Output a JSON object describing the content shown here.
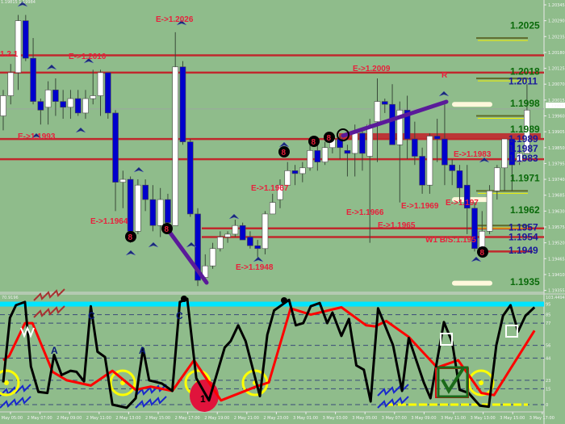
{
  "chart_data": [
    {
      "type": "candlestick",
      "price_axis": {
        "ticks": [
          "1.20345",
          "1.20290",
          "1.20235",
          "1.20180",
          "1.20125",
          "1.20070",
          "1.20015",
          "1.19960",
          "1.19905",
          "1.19850",
          "1.19795",
          "1.19740",
          "1.19685",
          "1.19630",
          "1.19575",
          "1.19520",
          "1.19465",
          "1.19410",
          "1.19355"
        ],
        "range": [
          1.1933,
          1.2036
        ],
        "current_price": "1.19984"
      },
      "header_text": "1.19815 1.19984",
      "candles_ohlc": [
        [
          1.1996,
          1.2005,
          1.1991,
          1.2003
        ],
        [
          1.2003,
          1.2014,
          1.2,
          1.2011
        ],
        [
          1.2011,
          1.2031,
          1.2005,
          1.2029
        ],
        [
          1.2029,
          1.2031,
          1.2015,
          1.2016
        ],
        [
          1.2016,
          1.2023,
          1.2,
          1.2001
        ],
        [
          1.2001,
          1.2002,
          1.1993,
          1.1998
        ],
        [
          1.1999,
          1.2008,
          1.1993,
          1.2005
        ],
        [
          1.2005,
          1.2009,
          1.1996,
          1.2001
        ],
        [
          1.2001,
          1.2005,
          1.1995,
          1.1999
        ],
        [
          1.1999,
          1.2005,
          1.1995,
          1.2002
        ],
        [
          1.2002,
          1.2005,
          1.1996,
          1.1997
        ],
        [
          1.1997,
          1.2005,
          1.1995,
          1.2002
        ],
        [
          1.2002,
          1.2012,
          1.2,
          1.2003
        ],
        [
          1.2003,
          1.2012,
          1.1996,
          1.2011
        ],
        [
          1.2011,
          1.2011,
          1.1995,
          1.1997
        ],
        [
          1.1997,
          1.1998,
          1.1963,
          1.1973
        ],
        [
          1.1973,
          1.1977,
          1.1964,
          1.1974
        ],
        [
          1.1974,
          1.1975,
          1.1952,
          1.1956
        ],
        [
          1.1956,
          1.1974,
          1.1955,
          1.1972
        ],
        [
          1.1972,
          1.1974,
          1.1963,
          1.1967
        ],
        [
          1.1967,
          1.1972,
          1.1956,
          1.1958
        ],
        [
          1.1958,
          1.1971,
          1.1954,
          1.1967
        ],
        [
          1.1967,
          1.1969,
          1.1958,
          1.1959
        ],
        [
          1.1958,
          1.2025,
          1.1958,
          1.2013
        ],
        [
          1.2013,
          1.2015,
          1.1986,
          1.1987
        ],
        [
          1.1987,
          1.1988,
          1.1961,
          1.1962
        ],
        [
          1.1962,
          1.1964,
          1.1937,
          1.1939
        ],
        [
          1.194,
          1.1948,
          1.1938,
          1.1944
        ],
        [
          1.1944,
          1.1952,
          1.1943,
          1.195
        ],
        [
          1.195,
          1.1956,
          1.1949,
          1.1954
        ],
        [
          1.1954,
          1.1956,
          1.1952,
          1.1955
        ],
        [
          1.1955,
          1.196,
          1.1954,
          1.1958
        ],
        [
          1.1958,
          1.1959,
          1.1953,
          1.1953
        ],
        [
          1.1954,
          1.1956,
          1.195,
          1.1951
        ],
        [
          1.1951,
          1.1953,
          1.1947,
          1.195
        ],
        [
          1.195,
          1.1963,
          1.1948,
          1.1962
        ],
        [
          1.1962,
          1.1969,
          1.1962,
          1.1966
        ],
        [
          1.1967,
          1.1974,
          1.1964,
          1.1972
        ],
        [
          1.1972,
          1.198,
          1.1972,
          1.1977
        ],
        [
          1.1977,
          1.1979,
          1.1972,
          1.1976
        ],
        [
          1.1976,
          1.198,
          1.1973,
          1.1978
        ],
        [
          1.1978,
          1.1986,
          1.1977,
          1.1984
        ],
        [
          1.1984,
          1.1986,
          1.1977,
          1.198
        ],
        [
          1.198,
          1.1987,
          1.1979,
          1.1985
        ],
        [
          1.1985,
          1.1989,
          1.1983,
          1.1988
        ],
        [
          1.1988,
          1.1989,
          1.1981,
          1.1985
        ],
        [
          1.1984,
          1.1986,
          1.1975,
          1.1983
        ],
        [
          1.1983,
          1.1993,
          1.1975,
          1.199
        ],
        [
          1.199,
          1.1991,
          1.1977,
          1.1983
        ],
        [
          1.1982,
          1.1995,
          1.1952,
          1.1993
        ],
        [
          1.1994,
          1.2009,
          1.198,
          1.2001
        ],
        [
          1.2001,
          1.2002,
          1.1997,
          1.2
        ],
        [
          1.2,
          1.2007,
          1.1986,
          1.1986
        ],
        [
          1.1986,
          1.2001,
          1.1966,
          1.1998
        ],
        [
          1.1998,
          1.2003,
          1.1981,
          1.1988
        ],
        [
          1.1988,
          1.1994,
          1.1979,
          1.1982
        ],
        [
          1.1982,
          1.1985,
          1.1969,
          1.1972
        ],
        [
          1.1972,
          1.199,
          1.1969,
          1.1989
        ],
        [
          1.1989,
          1.1995,
          1.198,
          1.1988
        ],
        [
          1.1988,
          1.2,
          1.1972,
          1.1979
        ],
        [
          1.1979,
          1.1981,
          1.1972,
          1.1977
        ],
        [
          1.1977,
          1.1979,
          1.1966,
          1.1971
        ],
        [
          1.1972,
          1.1979,
          1.1955,
          1.1964
        ],
        [
          1.1964,
          1.1966,
          1.1949,
          1.195
        ],
        [
          1.195,
          1.1963,
          1.1949,
          1.1956
        ],
        [
          1.1956,
          1.1972,
          1.1955,
          1.197
        ],
        [
          1.197,
          1.1979,
          1.1967,
          1.1978
        ],
        [
          1.1978,
          1.1988,
          1.197,
          1.1988
        ],
        [
          1.1988,
          1.1988,
          1.197,
          1.1979
        ],
        [
          1.198,
          1.1986,
          1.1979,
          1.1983
        ],
        [
          1.1983,
          1.2007,
          1.1983,
          1.1998
        ]
      ],
      "colors": {
        "bull": "#ffffff",
        "bear": "#0000cc",
        "level_line": "#c0282d",
        "trend_line": "#5a1a9a"
      },
      "red_levels": [
        1.2017,
        1.2011,
        1.1988,
        1.1981,
        1.1957,
        1.1954
      ],
      "right_labels": [
        {
          "text": "1.2025",
          "price": 1.2026,
          "color": "#0a6a0a"
        },
        {
          "text": "1.2018",
          "price": 1.201,
          "color": "#0a6a0a"
        },
        {
          "text": "1.2011",
          "price": 1.201,
          "color": "#1a1a9a"
        },
        {
          "text": "1.1998",
          "price": 1.1999,
          "color": "#0a6a0a"
        },
        {
          "text": "1.1989",
          "price": 1.199,
          "color": "#0a6a0a"
        },
        {
          "text": "1.1989",
          "price": 1.1987,
          "color": "#1a1a9a"
        },
        {
          "text": "1.1987",
          "price": 1.1984,
          "color": "#1a1a9a"
        },
        {
          "text": "1.1983",
          "price": 1.198,
          "color": "#1a1a9a"
        },
        {
          "text": "1.1971",
          "price": 1.1973,
          "color": "#0a6a0a"
        },
        {
          "text": "1.1962",
          "price": 1.1962,
          "color": "#0a6a0a"
        },
        {
          "text": "1.1957",
          "price": 1.1956,
          "color": "#1a1a9a"
        },
        {
          "text": "1.1954",
          "price": 1.1953,
          "color": "#1a1a9a"
        },
        {
          "text": "1.1949",
          "price": 1.1948,
          "color": "#1a1a9a"
        },
        {
          "text": "1.1935",
          "price": 1.1937,
          "color": "#0a6a0a"
        }
      ],
      "annotations": [
        "E->1.2026",
        "E->1.2010",
        "E->1.1993",
        "1.2  1",
        "E->1.1964",
        "E->1.1948",
        "E->1.1967",
        "E->1.2009",
        "E->1.1966",
        "E->1.1965",
        "E->1.1969",
        "E->1.197",
        "E->1.1983",
        "W1 B/S:1.195",
        "R",
        "C"
      ],
      "markers": [
        "8",
        "8",
        "8",
        "8",
        "8",
        "8"
      ]
    },
    {
      "type": "line",
      "oscillator_header": "70.9196",
      "y_top_label": "103.4494",
      "levels": [
        "95",
        "85",
        "77",
        "56",
        "44",
        "23",
        "15",
        "0"
      ],
      "ylim": [
        0,
        103.4494
      ],
      "x_tick_labels": [
        "2 May 05:00",
        "2 May 07:00",
        "2 May 09:00",
        "2 May 11:00",
        "2 May 13:00",
        "2 May 15:00",
        "2 May 17:00",
        "2 May 19:00",
        "2 May 21:00",
        "2 May 23:00",
        "3 May 01:00",
        "3 May 03:00",
        "3 May 05:00",
        "3 May 07:00",
        "3 May 09:00",
        "3 May 11:00",
        "3 May 13:00",
        "3 May 15:00",
        "3 May 17:00"
      ],
      "series": [
        {
          "color": "#000000",
          "points_bar_value": [
            [
              0,
              21
            ],
            [
              0.9,
              82
            ],
            [
              1.7,
              94
            ],
            [
              2.9,
              97
            ],
            [
              3.7,
              36
            ],
            [
              4.7,
              12
            ],
            [
              5.9,
              11
            ],
            [
              6.8,
              47
            ],
            [
              7.8,
              28
            ],
            [
              9.0,
              32
            ],
            [
              9.8,
              31
            ],
            [
              10.8,
              22
            ],
            [
              11.7,
              93
            ],
            [
              12.6,
              50
            ],
            [
              13.6,
              45
            ],
            [
              14.6,
              0
            ],
            [
              16.5,
              -3
            ],
            [
              17.7,
              6
            ],
            [
              18.7,
              53
            ],
            [
              19.5,
              23
            ],
            [
              21.2,
              20
            ],
            [
              22.6,
              13
            ],
            [
              23.6,
              97
            ],
            [
              24.6,
              100
            ],
            [
              25.8,
              25
            ],
            [
              27.5,
              4
            ],
            [
              29.6,
              54
            ],
            [
              30.4,
              60
            ],
            [
              31.4,
              75
            ],
            [
              32.4,
              60
            ],
            [
              34.3,
              8
            ],
            [
              35.3,
              66
            ],
            [
              36.2,
              89
            ],
            [
              38.2,
              99
            ],
            [
              39.1,
              75
            ],
            [
              40.1,
              77
            ],
            [
              41.1,
              93
            ],
            [
              42.3,
              96
            ],
            [
              43.3,
              77
            ],
            [
              44.0,
              87
            ],
            [
              45.2,
              65
            ],
            [
              46.2,
              81
            ],
            [
              47.2,
              37
            ],
            [
              48.2,
              33
            ],
            [
              49.1,
              3
            ],
            [
              50.1,
              91
            ],
            [
              52.1,
              56
            ],
            [
              53.3,
              13
            ],
            [
              54.2,
              63
            ],
            [
              56.2,
              21
            ],
            [
              57.1,
              6
            ],
            [
              58.9,
              78
            ],
            [
              60.0,
              59
            ],
            [
              61.0,
              14
            ],
            [
              62.2,
              11
            ],
            [
              63.7,
              -1
            ],
            [
              64.9,
              -2
            ],
            [
              65.9,
              56
            ],
            [
              66.8,
              84
            ],
            [
              67.8,
              94
            ],
            [
              68.8,
              69
            ],
            [
              69.8,
              84
            ],
            [
              71.0,
              92
            ]
          ]
        },
        {
          "color": "#ff0000",
          "points_bar_value": [
            [
              0,
              42
            ],
            [
              0.8,
              46
            ],
            [
              2.9,
              77
            ],
            [
              3.9,
              77
            ],
            [
              6.6,
              31
            ],
            [
              8.5,
              23
            ],
            [
              11.7,
              18
            ],
            [
              14.6,
              32
            ],
            [
              17.7,
              14
            ],
            [
              19.7,
              17
            ],
            [
              22.6,
              13
            ],
            [
              25.5,
              42
            ],
            [
              29.1,
              4
            ],
            [
              33.8,
              17
            ],
            [
              35.5,
              21
            ],
            [
              38.4,
              91
            ],
            [
              41.1,
              85
            ],
            [
              45.2,
              92
            ],
            [
              48.5,
              75
            ],
            [
              49.7,
              74
            ],
            [
              51.2,
              79
            ],
            [
              54.2,
              64
            ],
            [
              58.0,
              35
            ],
            [
              60.8,
              42
            ],
            [
              63.9,
              11
            ],
            [
              65.6,
              9
            ],
            [
              67.8,
              34
            ],
            [
              71.0,
              70
            ]
          ]
        }
      ],
      "letters": [
        "A",
        "A",
        "C",
        "C",
        "1"
      ],
      "colors": {
        "upper_band": "#00e5ff",
        "zero_band": "#ffff00",
        "circles": "#ffff00",
        "signal_blob": "#e0143c",
        "check": "#1a6a1a"
      }
    }
  ]
}
